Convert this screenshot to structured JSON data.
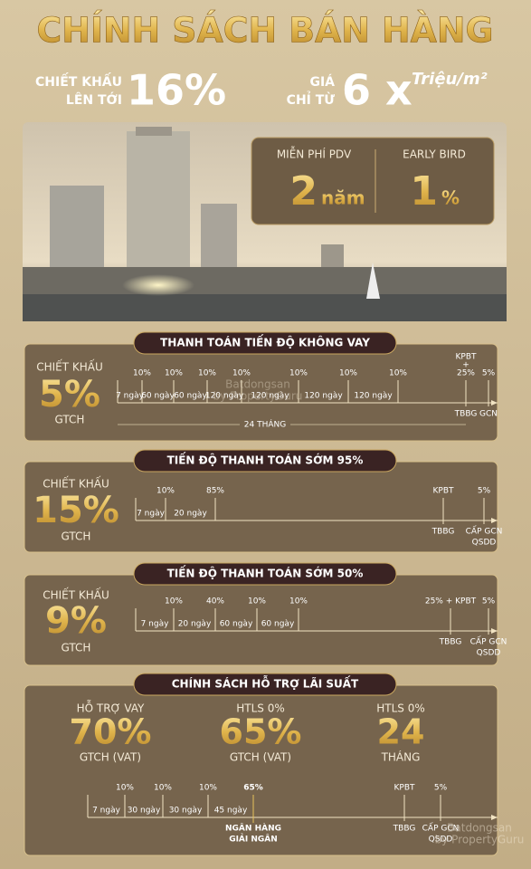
{
  "title": "CHÍNH SÁCH BÁN HÀNG",
  "highlights": {
    "discount_label_1": "CHIẾT KHẤU",
    "discount_label_2": "LÊN TỚI",
    "discount": "16%",
    "price_label_1": "GIÁ",
    "price_label_2": "CHỈ TỪ",
    "price": "6 x",
    "price_unit": "Triệu/m²"
  },
  "perks": [
    {
      "label": "MIỄN PHÍ PDV",
      "value": "2",
      "unit": "năm"
    },
    {
      "label": "EARLY BIRD",
      "value": "1",
      "unit": "%"
    }
  ],
  "sections": [
    {
      "heading": "THANH TOÁN TIẾN ĐỘ KHÔNG VAY",
      "discount_label": "CHIẾT KHẤU",
      "discount": "5%",
      "basis": "GTCH",
      "payments": [
        "10%",
        "10%",
        "10%",
        "10%",
        "10%",
        "10%",
        "10%"
      ],
      "intervals": [
        "7 ngày",
        "60 ngày",
        "60 ngày",
        "120 ngày",
        "120 ngày",
        "120 ngày",
        "120 ngày"
      ],
      "handover": [
        "KPBT",
        "+",
        "25%"
      ],
      "final": "5%",
      "handover_label": [
        "TBBG"
      ],
      "final_label": [
        "GCN"
      ],
      "duration": "24 THÁNG"
    },
    {
      "heading": "TIẾN ĐỘ THANH TOÁN SỚM 95%",
      "discount_label": "CHIẾT KHẤU",
      "discount": "15%",
      "basis": "GTCH",
      "payments": [
        "10%",
        "85%"
      ],
      "intervals": [
        "7 ngày",
        "20 ngày"
      ],
      "handover": [
        "KPBT"
      ],
      "final": "5%",
      "handover_label": [
        "TBBG"
      ],
      "final_label": [
        "CẤP GCN",
        "QSDD"
      ]
    },
    {
      "heading": "TIẾN ĐỘ THANH TOÁN SỚM 50%",
      "discount_label": "CHIẾT KHẤU",
      "discount": "9%",
      "basis": "GTCH",
      "payments": [
        "10%",
        "40%",
        "10%",
        "10%"
      ],
      "intervals": [
        "7 ngày",
        "20 ngày",
        "60 ngày",
        "60 ngày"
      ],
      "handover": [
        "25% + KPBT"
      ],
      "final": "5%",
      "handover_label": [
        "TBBG"
      ],
      "final_label": [
        "CẤP GCN",
        "QSDD"
      ]
    },
    {
      "heading": "CHÍNH SÁCH HỖ TRỢ LÃI SUẤT",
      "supports": [
        {
          "label": "HỖ TRỢ VAY",
          "value": "70%",
          "note": "GTCH (VAT)"
        },
        {
          "label": "HTLS 0%",
          "value": "65%",
          "note": "GTCH (VAT)"
        },
        {
          "label": "HTLS 0%",
          "value": "24",
          "note": "THÁNG"
        }
      ],
      "payments": [
        "10%",
        "10%",
        "10%",
        "65%"
      ],
      "intervals": [
        "7 ngày",
        "30 ngày",
        "30 ngày",
        "45 ngày"
      ],
      "disbursement": [
        "NGÂN HÀNG",
        "GIẢI NGÂN"
      ],
      "handover": [
        "KPBT"
      ],
      "final": "5%",
      "handover_label": [
        "TBBG"
      ],
      "final_label": [
        "CẤP GCN",
        "QSDD"
      ]
    }
  ],
  "watermarks": [
    "Batdongsan",
    "by PropertyGuru"
  ]
}
